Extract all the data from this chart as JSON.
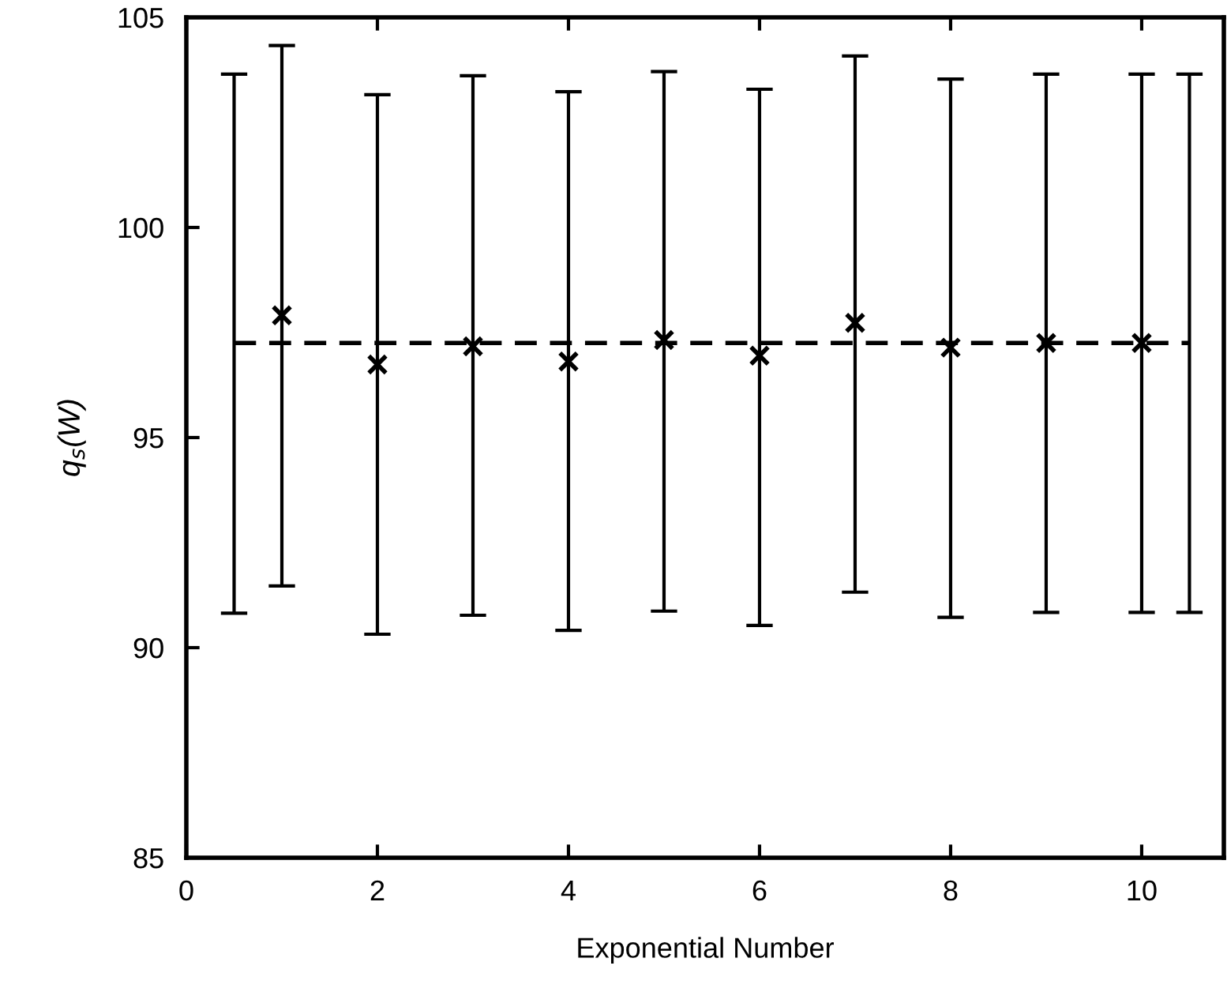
{
  "chart_data": {
    "type": "scatter",
    "xlabel": "Exponential Number",
    "ylabel": "q$_{s}$(W)",
    "xlim": [
      0,
      10.86
    ],
    "xticks": [
      0,
      2,
      4,
      6,
      8,
      10
    ],
    "ylim": [
      85,
      105
    ],
    "yticks": [
      85,
      90,
      95,
      100,
      105
    ],
    "grid": false,
    "legend": false,
    "series": [
      {
        "type": "scatter",
        "color": "#000000",
        "marker": "cross",
        "x": [
          1,
          2,
          3,
          4,
          5,
          6,
          7,
          8,
          9,
          10
        ],
        "values": [
          97.91,
          96.74,
          97.17,
          96.81,
          97.32,
          96.95,
          97.73,
          97.14,
          97.25,
          97.25
        ],
        "errors": [
          [
            91.47,
            104.33
          ],
          [
            90.32,
            103.16
          ],
          [
            90.77,
            103.61
          ],
          [
            90.41,
            103.23
          ],
          [
            90.87,
            103.71
          ],
          [
            90.53,
            103.29
          ],
          [
            91.32,
            104.08
          ],
          [
            90.72,
            103.53
          ],
          [
            90.84,
            103.65
          ],
          [
            90.84,
            103.65
          ]
        ]
      },
      {
        "type": "line",
        "color": "#000000",
        "marker": "none",
        "line_style": "dashed",
        "x": [
          0.5,
          10.5
        ],
        "values": [
          97.25,
          97.25
        ],
        "errors": [
          [
            90.82,
            103.65
          ],
          [
            90.84,
            103.65
          ]
        ]
      }
    ]
  }
}
